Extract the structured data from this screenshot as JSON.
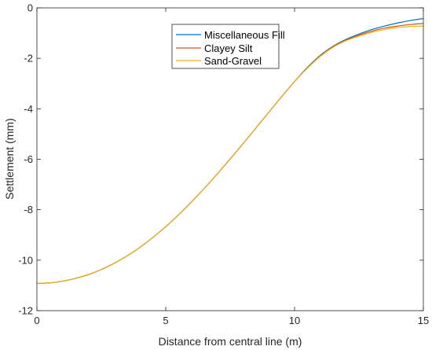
{
  "chart_data": {
    "type": "line",
    "xlabel": "Distance from central line (m)",
    "ylabel": "Settlement (mm)",
    "xlim": [
      0,
      15
    ],
    "ylim": [
      -12,
      0
    ],
    "x_ticks": [
      0,
      5,
      10,
      15
    ],
    "y_ticks": [
      0,
      -2,
      -4,
      -6,
      -8,
      -10,
      -12
    ],
    "grid": false,
    "legend_position": "top-center",
    "x": [
      0,
      0.5,
      1,
      1.5,
      2,
      2.5,
      3,
      3.5,
      4,
      4.5,
      5,
      5.5,
      6,
      6.5,
      7,
      7.5,
      8,
      8.5,
      9,
      9.5,
      10,
      10.5,
      11,
      11.5,
      12,
      12.5,
      13,
      13.5,
      14,
      14.5,
      15
    ],
    "series": [
      {
        "name": "Miscellaneous Fill",
        "color": "#0072BD",
        "values": [
          -10.92,
          -10.9,
          -10.83,
          -10.72,
          -10.57,
          -10.37,
          -10.12,
          -9.83,
          -9.49,
          -9.1,
          -8.67,
          -8.2,
          -7.69,
          -7.15,
          -6.58,
          -5.99,
          -5.38,
          -4.76,
          -4.14,
          -3.52,
          -2.92,
          -2.36,
          -1.88,
          -1.52,
          -1.25,
          -1.04,
          -0.86,
          -0.72,
          -0.6,
          -0.5,
          -0.42
        ]
      },
      {
        "name": "Clayey Silt",
        "color": "#D95319",
        "values": [
          -10.92,
          -10.9,
          -10.83,
          -10.72,
          -10.57,
          -10.37,
          -10.12,
          -9.83,
          -9.49,
          -9.1,
          -8.67,
          -8.2,
          -7.69,
          -7.15,
          -6.58,
          -5.99,
          -5.38,
          -4.76,
          -4.14,
          -3.52,
          -2.92,
          -2.38,
          -1.9,
          -1.54,
          -1.28,
          -1.08,
          -0.92,
          -0.8,
          -0.72,
          -0.66,
          -0.62
        ]
      },
      {
        "name": "Sand-Gravel",
        "color": "#EDB120",
        "values": [
          -10.92,
          -10.9,
          -10.83,
          -10.72,
          -10.57,
          -10.37,
          -10.12,
          -9.83,
          -9.49,
          -9.1,
          -8.67,
          -8.2,
          -7.69,
          -7.15,
          -6.58,
          -5.99,
          -5.38,
          -4.76,
          -4.14,
          -3.52,
          -2.92,
          -2.39,
          -1.92,
          -1.56,
          -1.3,
          -1.12,
          -0.97,
          -0.86,
          -0.78,
          -0.74,
          -0.72
        ]
      }
    ]
  }
}
